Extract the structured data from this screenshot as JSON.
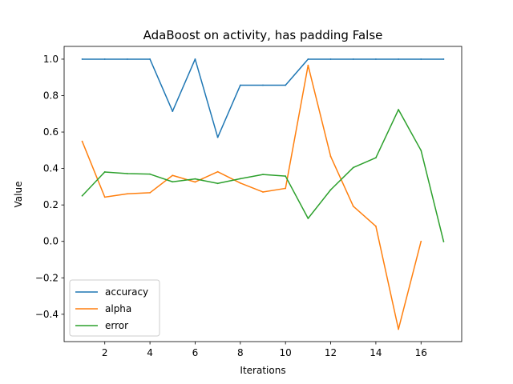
{
  "chart_data": {
    "type": "line",
    "title": "AdaBoost on activity, has padding False",
    "xlabel": "Iterations",
    "ylabel": "Value",
    "xlim": [
      0.2,
      17.8
    ],
    "ylim": [
      -0.55,
      1.07
    ],
    "xticks": [
      2,
      4,
      6,
      8,
      10,
      12,
      14,
      16
    ],
    "yticks": [
      -0.4,
      -0.2,
      0.0,
      0.2,
      0.4,
      0.6,
      0.8,
      1.0
    ],
    "ytick_labels": [
      "−0.4",
      "−0.2",
      "0.0",
      "0.2",
      "0.4",
      "0.6",
      "0.8",
      "1.0"
    ],
    "grid": false,
    "legend_position": "lower-left",
    "series": [
      {
        "name": "accuracy",
        "color": "#1f77b4",
        "x": [
          1,
          2,
          3,
          4,
          5,
          6,
          7,
          8,
          9,
          10,
          11,
          12,
          13,
          14,
          15,
          16,
          17
        ],
        "values": [
          1.0,
          1.0,
          1.0,
          1.0,
          0.714,
          1.0,
          0.571,
          0.857,
          0.857,
          0.857,
          1.0,
          1.0,
          1.0,
          1.0,
          1.0,
          1.0,
          1.0
        ]
      },
      {
        "name": "alpha",
        "color": "#ff7f0e",
        "x": [
          1,
          2,
          3,
          4,
          5,
          6,
          7,
          8,
          9,
          10,
          11,
          12,
          13,
          14,
          15,
          16
        ],
        "values": [
          0.549,
          0.243,
          0.261,
          0.267,
          0.362,
          0.326,
          0.382,
          0.32,
          0.271,
          0.291,
          0.966,
          0.466,
          0.193,
          0.083,
          -0.482,
          0.0
        ]
      },
      {
        "name": "error",
        "color": "#2ca02c",
        "x": [
          1,
          2,
          3,
          4,
          5,
          6,
          7,
          8,
          9,
          10,
          11,
          12,
          13,
          14,
          15,
          16,
          17
        ],
        "values": [
          0.25,
          0.381,
          0.372,
          0.369,
          0.327,
          0.343,
          0.318,
          0.344,
          0.367,
          0.358,
          0.126,
          0.283,
          0.405,
          0.459,
          0.723,
          0.499,
          -0.001
        ]
      }
    ]
  }
}
